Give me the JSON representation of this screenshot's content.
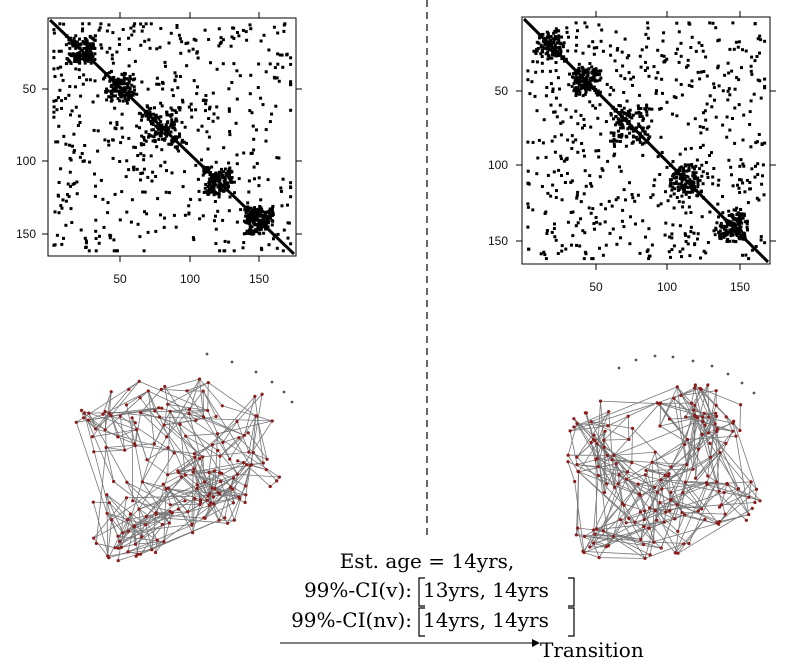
{
  "panels": {
    "left_matrix": {
      "x_ticks": [
        "50",
        "100",
        "150"
      ],
      "y_ticks": [
        "50",
        "100",
        "150"
      ]
    },
    "right_matrix": {
      "x_ticks": [
        "50",
        "100",
        "150"
      ],
      "y_ticks": [
        "50",
        "100",
        "150"
      ]
    }
  },
  "caption": {
    "est_age": "Est. age = 14yrs,",
    "ci_v_label": "99%-CI(v):",
    "ci_v_value": "13yrs, 14yrs",
    "ci_nv_label": "99%-CI(nv):",
    "ci_nv_value": "14yrs, 14yrs",
    "transition_label": "Transition"
  },
  "colors": {
    "matrix_dot": "#000000",
    "network_edge": "#777777",
    "network_node": "#8b1a1a",
    "divider": "#000000"
  }
}
